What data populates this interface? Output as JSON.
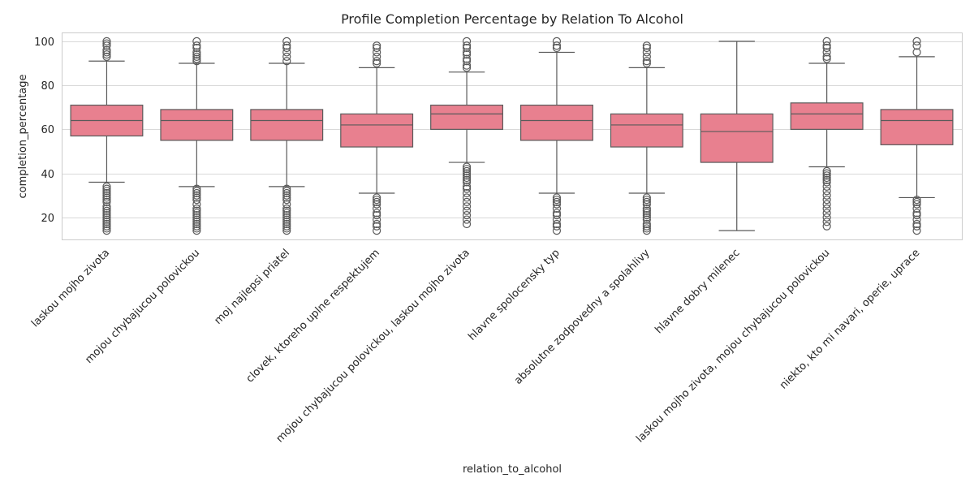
{
  "chart_data": {
    "type": "box",
    "title": "Profile Completion Percentage by Relation To Alcohol",
    "xlabel": "relation_to_alcohol",
    "ylabel": "completion_percentage",
    "ylim": [
      10,
      104
    ],
    "yticks": [
      20,
      40,
      60,
      80,
      100
    ],
    "grid": true,
    "box_color": "#e8808f",
    "edge_color": "#5a5a5a",
    "categories": [
      "laskou mojho zivota",
      "mojou chybajucou polovickou",
      "moj najlepsi priatel",
      "clovek, ktoreho uplne respektujem",
      "mojou chybajucou polovickou, laskou mojho zivota",
      "hlavne spolocensky typ",
      "absolutne zodpovedny a spolahlivy",
      "hlavne dobry milenec",
      "laskou mojho zivota, mojou chybajucou polovickou",
      "niekto, kto mi navari, operie, uprace"
    ],
    "boxes": [
      {
        "whislo": 36,
        "q1": 57,
        "med": 64,
        "q3": 71,
        "whishi": 91,
        "fliers": [
          14,
          15,
          16,
          17,
          18,
          19,
          20,
          21,
          22,
          23,
          24,
          25,
          27,
          28,
          29,
          30,
          31,
          32,
          33,
          34,
          93,
          94,
          95,
          96,
          98,
          99,
          100
        ]
      },
      {
        "whislo": 34,
        "q1": 55,
        "med": 64,
        "q3": 69,
        "whishi": 90,
        "fliers": [
          14,
          15,
          16,
          17,
          18,
          19,
          20,
          21,
          22,
          23,
          24,
          26,
          28,
          29,
          30,
          31,
          32,
          33,
          91,
          92,
          93,
          94,
          95,
          97,
          98,
          100
        ]
      },
      {
        "whislo": 34,
        "q1": 55,
        "med": 64,
        "q3": 69,
        "whishi": 90,
        "fliers": [
          14,
          15,
          16,
          17,
          18,
          19,
          20,
          21,
          22,
          23,
          24,
          26,
          28,
          29,
          30,
          31,
          32,
          33,
          91,
          93,
          95,
          97,
          98,
          100
        ]
      },
      {
        "whislo": 31,
        "q1": 52,
        "med": 62,
        "q3": 67,
        "whishi": 88,
        "fliers": [
          14,
          16,
          17,
          19,
          21,
          22,
          24,
          26,
          27,
          28,
          29,
          90,
          91,
          93,
          95,
          97,
          98
        ]
      },
      {
        "whislo": 45,
        "q1": 60,
        "med": 67,
        "q3": 71,
        "whishi": 86,
        "fliers": [
          17,
          19,
          21,
          23,
          25,
          27,
          29,
          31,
          33,
          34,
          36,
          37,
          38,
          39,
          40,
          41,
          42,
          43,
          88,
          89,
          91,
          92,
          94,
          95,
          97,
          98,
          100
        ]
      },
      {
        "whislo": 31,
        "q1": 55,
        "med": 64,
        "q3": 71,
        "whishi": 95,
        "fliers": [
          14,
          16,
          17,
          19,
          21,
          22,
          24,
          26,
          27,
          28,
          29,
          97,
          98,
          100
        ]
      },
      {
        "whislo": 31,
        "q1": 52,
        "med": 62,
        "q3": 67,
        "whishi": 88,
        "fliers": [
          14,
          15,
          16,
          17,
          19,
          20,
          21,
          22,
          23,
          24,
          26,
          27,
          28,
          29,
          90,
          91,
          93,
          95,
          97,
          98
        ]
      },
      {
        "whislo": 14,
        "q1": 45,
        "med": 59,
        "q3": 67,
        "whishi": 100,
        "fliers": []
      },
      {
        "whislo": 43,
        "q1": 60,
        "med": 67,
        "q3": 72,
        "whishi": 90,
        "fliers": [
          16,
          18,
          20,
          22,
          24,
          26,
          28,
          30,
          32,
          34,
          36,
          37,
          38,
          39,
          40,
          41,
          92,
          93,
          95,
          97,
          98,
          100
        ]
      },
      {
        "whislo": 29,
        "q1": 53,
        "med": 64,
        "q3": 69,
        "whishi": 93,
        "fliers": [
          14,
          16,
          17,
          19,
          21,
          22,
          24,
          26,
          27,
          28,
          95,
          98,
          100
        ]
      }
    ]
  }
}
